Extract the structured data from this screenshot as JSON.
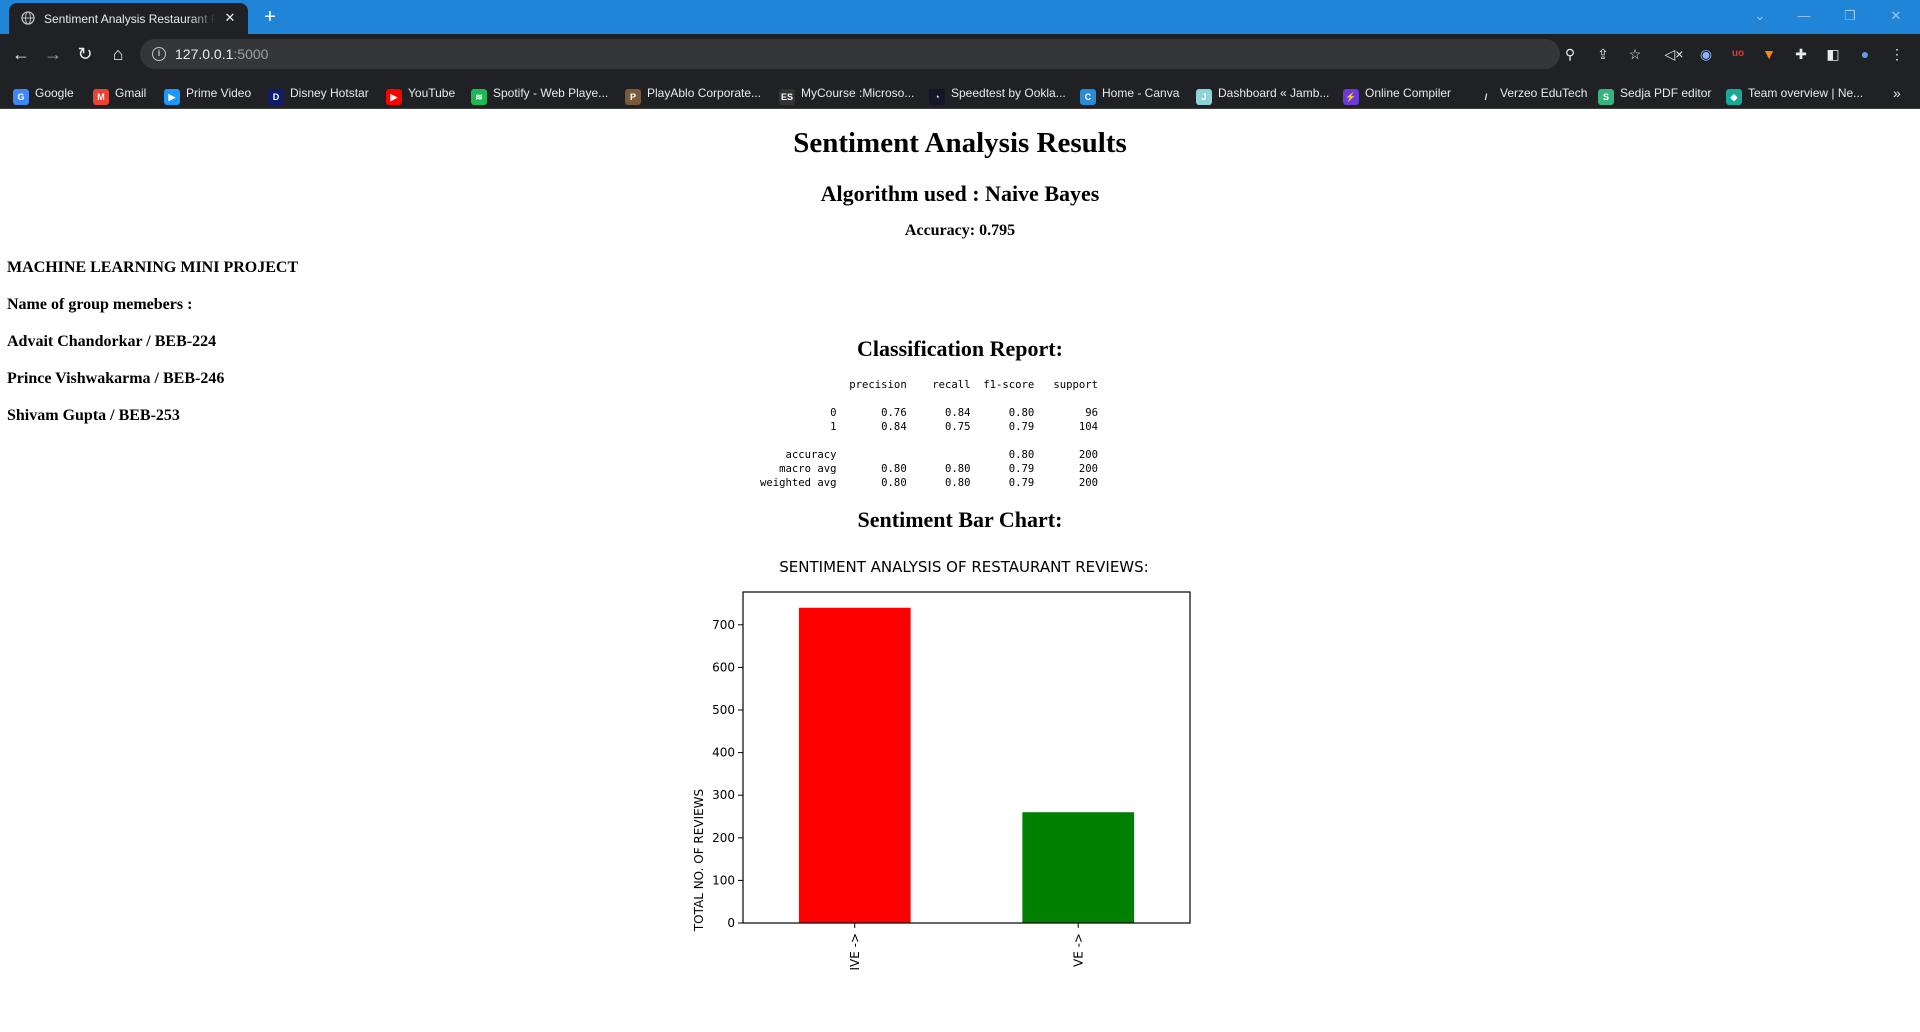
{
  "browser": {
    "tab_title": "Sentiment Analysis Restaurant Reviews",
    "new_tab": "+",
    "close": "✕",
    "url_host": "127.0.0.1",
    "url_port": ":5000",
    "bookmarks": [
      {
        "label": "Google",
        "icon": "google-icon",
        "color": "#4285f4",
        "glyph": "G"
      },
      {
        "label": "Gmail",
        "icon": "gmail-icon",
        "color": "#ea4335",
        "glyph": "M"
      },
      {
        "label": "Prime Video",
        "icon": "prime-video-icon",
        "color": "#1a98ff",
        "glyph": "▶"
      },
      {
        "label": "Disney Hotstar",
        "icon": "hotstar-icon",
        "color": "#0f1b6b",
        "glyph": "D"
      },
      {
        "label": "YouTube",
        "icon": "youtube-icon",
        "color": "#ff0000",
        "glyph": "▶"
      },
      {
        "label": "Spotify - Web Playe...",
        "icon": "spotify-icon",
        "color": "#1db954",
        "glyph": "≋"
      },
      {
        "label": "PlayAblo Corporate...",
        "icon": "playablo-icon",
        "color": "#7a5a3a",
        "glyph": "P"
      },
      {
        "label": "MyCourse :Microso...",
        "icon": "mycourse-icon",
        "color": "#333333",
        "glyph": "ES"
      },
      {
        "label": "Speedtest by Ookla...",
        "icon": "speedtest-icon",
        "color": "#141526",
        "glyph": "◔"
      },
      {
        "label": "Home - Canva",
        "icon": "canva-icon",
        "color": "#2b8ad6",
        "glyph": "C"
      },
      {
        "label": "Dashboard « Jamb...",
        "icon": "jamboard-icon",
        "color": "#8fd3d9",
        "glyph": "J"
      },
      {
        "label": "Online Compiler",
        "icon": "compiler-icon",
        "color": "#6a3bd6",
        "glyph": "⚡"
      },
      {
        "label": "Verzeo EduTech",
        "icon": "verzeo-icon",
        "color": "#202124",
        "glyph": "/"
      },
      {
        "label": "Sedja PDF editor",
        "icon": "sejda-icon",
        "color": "#36b37e",
        "glyph": "S"
      },
      {
        "label": "Team overview | Ne...",
        "icon": "team-icon",
        "color": "#18a999",
        "glyph": "◆"
      }
    ],
    "more_bookmarks": "»"
  },
  "page": {
    "title": "Sentiment Analysis Results",
    "algorithm": "Algorithm used : Naive Bayes",
    "accuracy": "Accuracy: 0.795",
    "project_title": "MACHINE LEARNING MINI PROJECT",
    "group_heading": "Name of group memebers :",
    "members": [
      "Advait Chandorkar / BEB-224",
      "Prince Vishwakarma / BEB-246",
      "Shivam Gupta / BEB-253"
    ],
    "report_heading": "Classification Report:",
    "report_text": "              precision    recall  f1-score   support\n\n           0       0.76      0.84      0.80        96\n           1       0.84      0.75      0.79       104\n\n    accuracy                           0.80       200\n   macro avg       0.80      0.80      0.79       200\nweighted avg       0.80      0.80      0.79       200",
    "chart_heading": "Sentiment Bar Chart:"
  },
  "chart_data": {
    "type": "bar",
    "title": "SENTIMENT ANALYSIS OF RESTAURANT REVIEWS:",
    "xlabel": "",
    "ylabel": "TOTAL NO. OF REVIEWS",
    "categories": [
      "IVE ->",
      "VE ->"
    ],
    "values": [
      740,
      260
    ],
    "colors": [
      "#ff0000",
      "#008000"
    ],
    "yticks": [
      0,
      100,
      200,
      300,
      400,
      500,
      600,
      700
    ],
    "ylim": [
      0,
      777
    ],
    "grid": false
  }
}
